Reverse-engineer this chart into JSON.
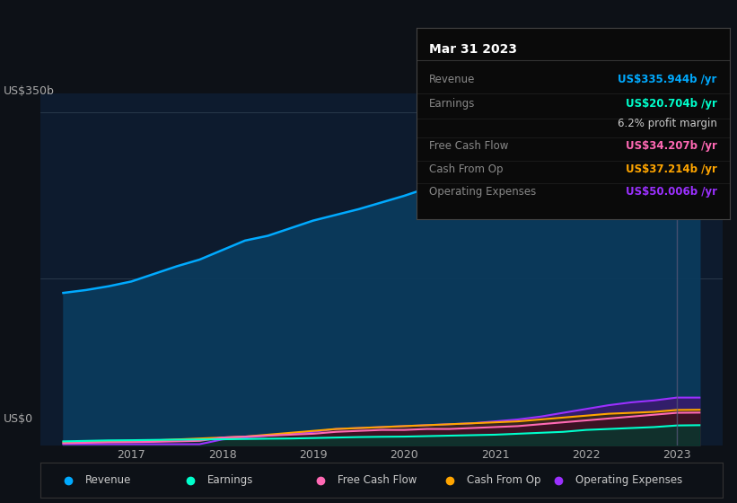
{
  "bg_color": "#0d1117",
  "chart_bg": "#0d1b2e",
  "y_label_top": "US$350b",
  "y_label_bottom": "US$0",
  "revenue_color": "#00aaff",
  "earnings_color": "#00ffcc",
  "fcf_color": "#ff69b4",
  "cashfromop_color": "#ffa500",
  "opex_color": "#9b30ff",
  "revenue_fill": "#0a3a5c",
  "legend_items": [
    {
      "label": "Revenue",
      "color": "#00aaff"
    },
    {
      "label": "Earnings",
      "color": "#00ffcc"
    },
    {
      "label": "Free Cash Flow",
      "color": "#ff69b4"
    },
    {
      "label": "Cash From Op",
      "color": "#ffa500"
    },
    {
      "label": "Operating Expenses",
      "color": "#9b30ff"
    }
  ],
  "tooltip": {
    "title": "Mar 31 2023",
    "rows": [
      {
        "label": "Revenue",
        "value": "US$335.944b /yr",
        "color": "#00aaff"
      },
      {
        "label": "Earnings",
        "value": "US$20.704b /yr",
        "color": "#00ffcc"
      },
      {
        "label": "",
        "value": "6.2% profit margin",
        "color": "#cccccc"
      },
      {
        "label": "Free Cash Flow",
        "value": "US$34.207b /yr",
        "color": "#ff69b4"
      },
      {
        "label": "Cash From Op",
        "value": "US$37.214b /yr",
        "color": "#ffa500"
      },
      {
        "label": "Operating Expenses",
        "value": "US$50.006b /yr",
        "color": "#9b30ff"
      }
    ]
  },
  "x_data": [
    2016.25,
    2016.5,
    2016.75,
    2017.0,
    2017.25,
    2017.5,
    2017.75,
    2018.0,
    2018.25,
    2018.5,
    2018.75,
    2019.0,
    2019.25,
    2019.5,
    2019.75,
    2020.0,
    2020.25,
    2020.5,
    2020.75,
    2021.0,
    2021.25,
    2021.5,
    2021.75,
    2022.0,
    2022.25,
    2022.5,
    2022.75,
    2023.0,
    2023.25
  ],
  "revenue": [
    160,
    163,
    167,
    172,
    180,
    188,
    195,
    205,
    215,
    220,
    228,
    236,
    242,
    248,
    255,
    262,
    270,
    276,
    282,
    290,
    298,
    305,
    310,
    315,
    318,
    322,
    328,
    335,
    336
  ],
  "earnings": [
    4,
    4.5,
    5,
    5.2,
    5.5,
    5.8,
    6.0,
    6.2,
    6.5,
    6.8,
    7.0,
    7.5,
    8,
    8.5,
    8.8,
    9.0,
    9.5,
    10,
    10.5,
    11,
    12,
    13,
    14,
    16,
    17,
    18,
    19,
    20.7,
    21
  ],
  "fcf": [
    2,
    2.5,
    3,
    3.2,
    3.5,
    4,
    4.5,
    8,
    9,
    10,
    11,
    12,
    14,
    15,
    16,
    16,
    17,
    17,
    18,
    19,
    20,
    22,
    24,
    26,
    28,
    30,
    32,
    34,
    34.2
  ],
  "cashfromop": [
    3,
    3.5,
    4,
    4.5,
    5,
    6,
    7,
    8,
    9,
    11,
    13,
    15,
    17,
    18,
    19,
    20,
    21,
    22,
    23,
    24,
    25,
    27,
    29,
    31,
    33,
    34,
    35,
    37,
    37.2
  ],
  "opex": [
    1,
    1,
    1,
    1,
    1,
    1,
    1,
    6,
    8,
    10,
    12,
    14,
    17,
    18,
    19,
    20,
    21,
    22,
    23,
    25,
    27,
    30,
    34,
    38,
    42,
    45,
    47,
    50,
    50
  ],
  "ylim": [
    0,
    370
  ],
  "xlim": [
    2016.0,
    2023.5
  ],
  "vertical_line_x": 2023.0
}
